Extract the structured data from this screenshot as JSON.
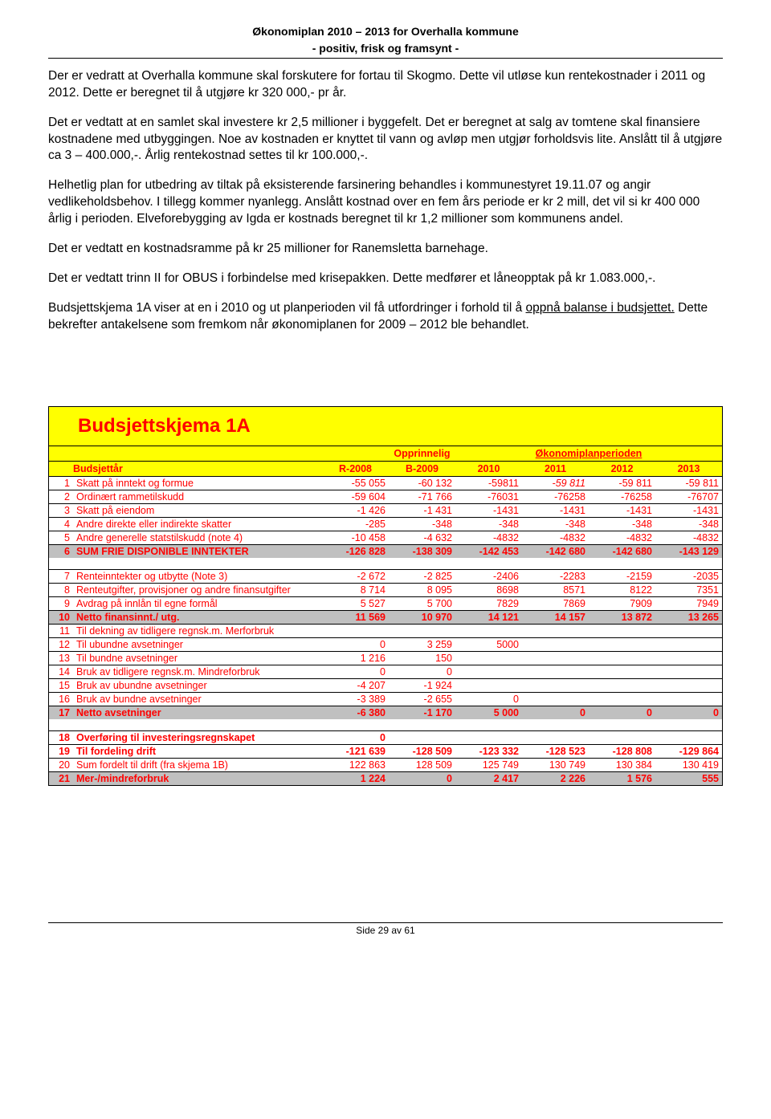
{
  "header": {
    "line1": "Økonomiplan 2010 – 2013 for Overhalla kommune",
    "line2": "- positiv, frisk og framsynt -"
  },
  "paragraphs": {
    "p1": "Der er vedratt at Overhalla kommune skal forskutere for fortau til Skogmo. Dette vil utløse kun rentekostnader i 2011 og 2012. Dette er beregnet til å utgjøre kr 320 000,- pr år.",
    "p2": "Det er vedtatt at en samlet skal investere kr 2,5 millioner i byggefelt. Det er beregnet at salg av tomtene skal finansiere kostnadene med utbyggingen. Noe av kostnaden er knyttet til vann og avløp men utgjør forholdsvis lite. Anslått til å utgjøre ca 3 – 400.000,-. Årlig rentekostnad settes til kr 100.000,-.",
    "p3": "Helhetlig plan for utbedring av tiltak på eksisterende farsinering behandles i kommunestyret 19.11.07 og angir vedlikeholdsbehov. I tillegg kommer nyanlegg. Anslått kostnad over en fem års periode er kr 2 mill, det vil si kr 400 000 årlig i perioden. Elveforebygging av Igda er kostnads beregnet til kr 1,2 millioner som kommunens andel.",
    "p4": "Det er vedtatt en kostnadsramme på kr 25 millioner for Ranemsletta barnehage.",
    "p5": "Det er vedtatt trinn II for OBUS i forbindelse med krisepakken. Dette medfører et låneopptak på kr 1.083.000,-.",
    "p6a": "Budsjettskjema 1A viser at en i 2010 og ut planperioden vil få utfordringer i forhold til å ",
    "p6b": "oppnå balanse i budsjettet.",
    "p6c": " Dette bekrefter antakelsene som fremkom når økonomiplanen for 2009 – 2012 ble behandlet."
  },
  "table": {
    "title": "Budsjettskjema 1A",
    "headers": {
      "opp": "Opprinnelig",
      "okoplan": "Økonomiplanperioden",
      "budsjettar": "Budsjettår",
      "r2008": "R-2008",
      "b2009": "B-2009",
      "y2010": "2010",
      "y2011": "2011",
      "y2012": "2012",
      "y2013": "2013"
    },
    "rows": [
      {
        "n": "1",
        "label": "Skatt på inntekt og formue",
        "v": [
          "-55 055",
          "-60 132",
          "-59811",
          "-59 811",
          "-59 811",
          "-59 811"
        ],
        "italic2011": true
      },
      {
        "n": "2",
        "label": "Ordinært rammetilskudd",
        "v": [
          "-59 604",
          "-71 766",
          "-76031",
          "-76258",
          "-76258",
          "-76707"
        ]
      },
      {
        "n": "3",
        "label": "Skatt på eiendom",
        "v": [
          "-1 426",
          "-1 431",
          "-1431",
          "-1431",
          "-1431",
          "-1431"
        ]
      },
      {
        "n": "4",
        "label": "Andre direkte eller indirekte skatter",
        "v": [
          "-285",
          "-348",
          "-348",
          "-348",
          "-348",
          "-348"
        ]
      },
      {
        "n": "5",
        "label": "Andre generelle statstilskudd (note 4)",
        "v": [
          "-10 458",
          "-4 632",
          "-4832",
          "-4832",
          "-4832",
          "-4832"
        ]
      },
      {
        "n": "6",
        "label": "SUM FRIE DISPONIBLE INNTEKTER",
        "v": [
          "-126 828",
          "-138 309",
          "-142 453",
          "-142 680",
          "-142 680",
          "-143 129"
        ],
        "bold": true,
        "grey": true
      }
    ],
    "rows2": [
      {
        "n": "7",
        "label": "Renteinntekter og utbytte (Note 3)",
        "v": [
          "-2 672",
          "-2 825",
          "-2406",
          "-2283",
          "-2159",
          "-2035"
        ]
      },
      {
        "n": "8",
        "label": "Renteutgifter, provisjoner og andre finansutgifter",
        "v": [
          "8 714",
          "8 095",
          "8698",
          "8571",
          "8122",
          "7351"
        ]
      },
      {
        "n": "9",
        "label": "Avdrag på innlån til egne formål",
        "v": [
          "5 527",
          "5 700",
          "7829",
          "7869",
          "7909",
          "7949"
        ]
      },
      {
        "n": "10",
        "label": "Netto finansinnt./ utg.",
        "v": [
          "11 569",
          "10 970",
          "14 121",
          "14 157",
          "13 872",
          "13 265"
        ],
        "bold": true,
        "grey": true
      },
      {
        "n": "11",
        "label": "Til dekning av tidligere regnsk.m. Merforbruk",
        "v": [
          "",
          "",
          "",
          "",
          "",
          ""
        ]
      },
      {
        "n": "12",
        "label": "Til ubundne avsetninger",
        "v": [
          "0",
          "3 259",
          "5000",
          "",
          "",
          ""
        ]
      },
      {
        "n": "13",
        "label": "Til bundne avsetninger",
        "v": [
          "1 216",
          "150",
          "",
          "",
          "",
          ""
        ]
      },
      {
        "n": "14",
        "label": "Bruk av tidligere regnsk.m. Mindreforbruk",
        "v": [
          "0",
          "0",
          "",
          "",
          "",
          ""
        ]
      },
      {
        "n": "15",
        "label": "Bruk av ubundne avsetninger",
        "v": [
          "-4 207",
          "-1 924",
          "",
          "",
          "",
          ""
        ]
      },
      {
        "n": "16",
        "label": "Bruk av bundne avsetninger",
        "v": [
          "-3 389",
          "-2 655",
          "0",
          "",
          "",
          ""
        ]
      },
      {
        "n": "17",
        "label": "Netto avsetninger",
        "v": [
          "-6 380",
          "-1 170",
          "5 000",
          "0",
          "0",
          "0"
        ],
        "bold": true,
        "grey": true
      }
    ],
    "rows3": [
      {
        "n": "18",
        "label": "Overføring til investeringsregnskapet",
        "v": [
          "0",
          "",
          "",
          "",
          "",
          ""
        ],
        "bold": true
      },
      {
        "n": "19",
        "label": "Til fordeling drift",
        "v": [
          "-121 639",
          "-128 509",
          "-123 332",
          "-128 523",
          "-128 808",
          "-129 864"
        ],
        "bold": true
      },
      {
        "n": "20",
        "label": "Sum fordelt til drift (fra skjema 1B)",
        "v": [
          "122 863",
          "128 509",
          "125 749",
          "130 749",
          "130 384",
          "130 419"
        ]
      },
      {
        "n": "21",
        "label": "Mer-/mindreforbruk",
        "v": [
          "1 224",
          "0",
          "2 417",
          "2 226",
          "1 576",
          "555"
        ],
        "bold": true,
        "grey": true
      }
    ]
  },
  "footer": "Side 29 av 61"
}
